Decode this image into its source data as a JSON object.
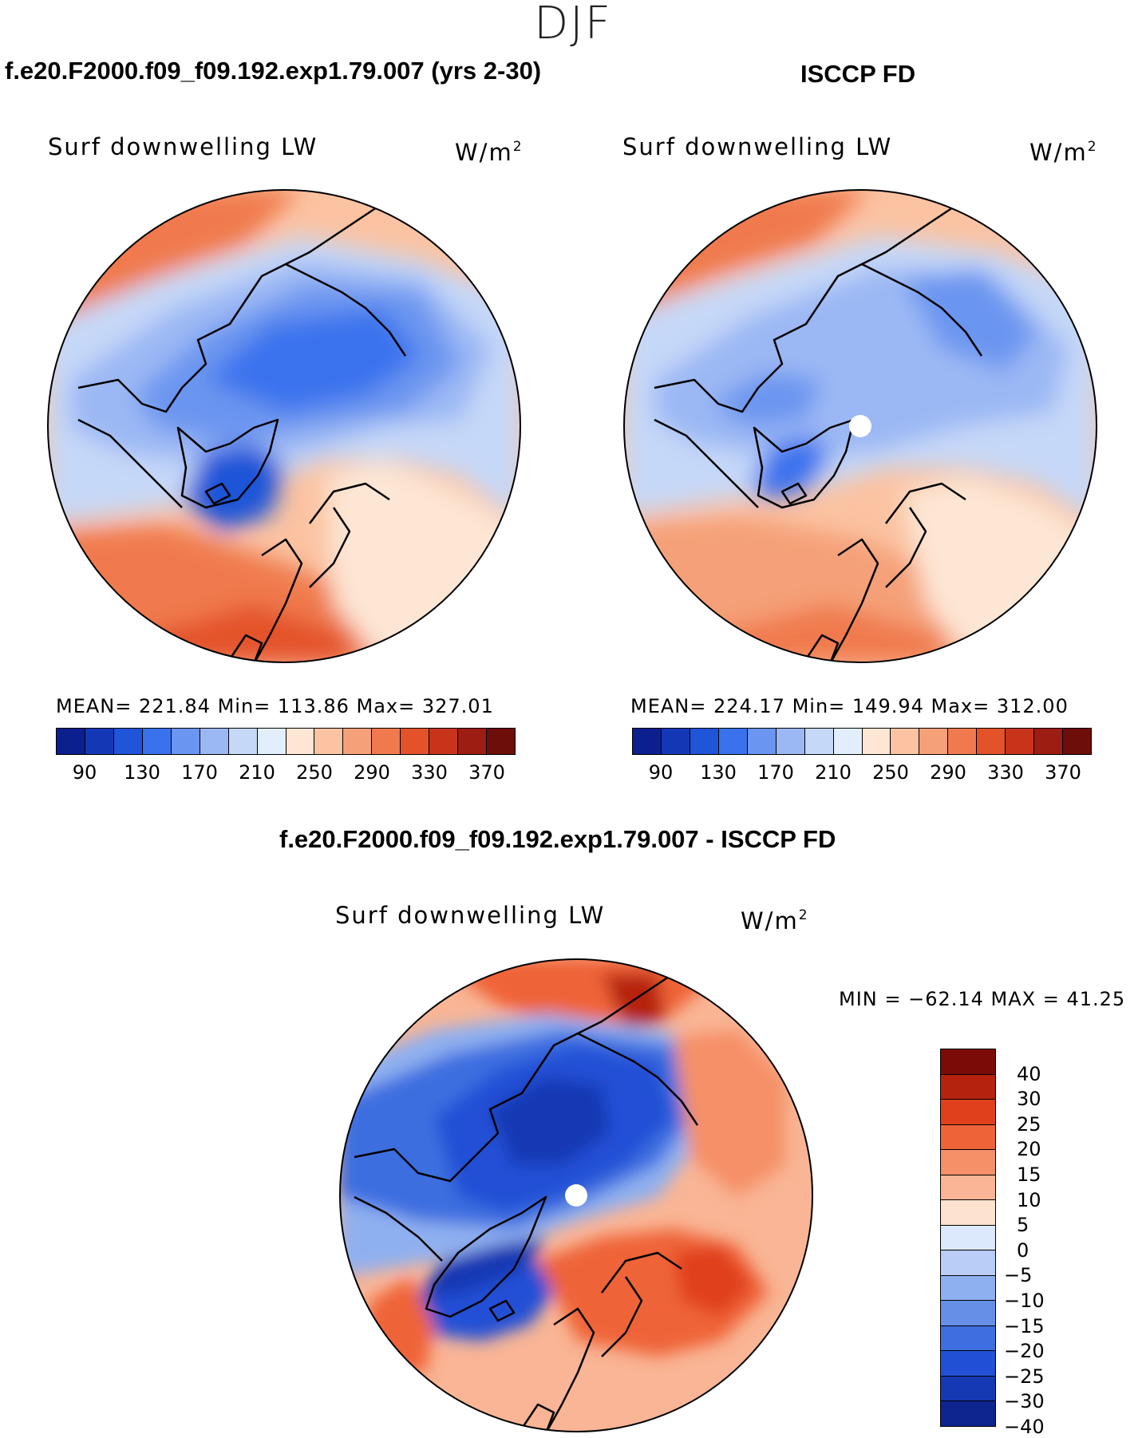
{
  "season": "DJF",
  "panels": {
    "model": {
      "title": "f.e20.F2000.f09_f09.192.exp1.79.007 (yrs 2-30)",
      "variable": "Surf  downwelling  LW",
      "units_base": "W/m",
      "units_exp": "2",
      "stats": "MEAN=  221.84    Min=  113.86    Max=  327.01"
    },
    "obs": {
      "title": "ISCCP FD",
      "variable": "Surf  downwelling  LW",
      "units_base": "W/m",
      "units_exp": "2",
      "stats": "MEAN=  224.17    Min=  149.94    Max=  312.00"
    },
    "diff": {
      "title": "f.e20.F2000.f09_f09.192.exp1.79.007 - ISCCP FD",
      "variable": "Surf  downwelling  LW",
      "units_base": "W/m",
      "units_exp": "2",
      "stats": "MIN  =  −62.14  MAX  =    41.25"
    }
  },
  "abs_colorbar": {
    "colors": [
      "#0b1f8f",
      "#1438b5",
      "#1f55d8",
      "#3a72ee",
      "#6a95f0",
      "#9bb8f4",
      "#c6d8f8",
      "#e2eefb",
      "#fde6d4",
      "#fbc3a2",
      "#f5a078",
      "#f07a4e",
      "#e4522a",
      "#c8341a",
      "#9d1d12",
      "#6e0e0a"
    ],
    "labels": [
      "90",
      "130",
      "170",
      "210",
      "250",
      "290",
      "330",
      "370"
    ]
  },
  "diff_colorbar": {
    "colors": [
      "#7a0b06",
      "#b5230f",
      "#e0401c",
      "#ef6338",
      "#f59068",
      "#f9b595",
      "#fde2cf",
      "#dce8fb",
      "#b9cdf6",
      "#8fb0f0",
      "#668fe8",
      "#3e6ee0",
      "#2150d6",
      "#1538b3",
      "#0e2590"
    ],
    "labels": [
      "40",
      "30",
      "25",
      "20",
      "15",
      "10",
      "5",
      "0",
      "−5",
      "−10",
      "−15",
      "−20",
      "−25",
      "−30",
      "−40"
    ]
  }
}
